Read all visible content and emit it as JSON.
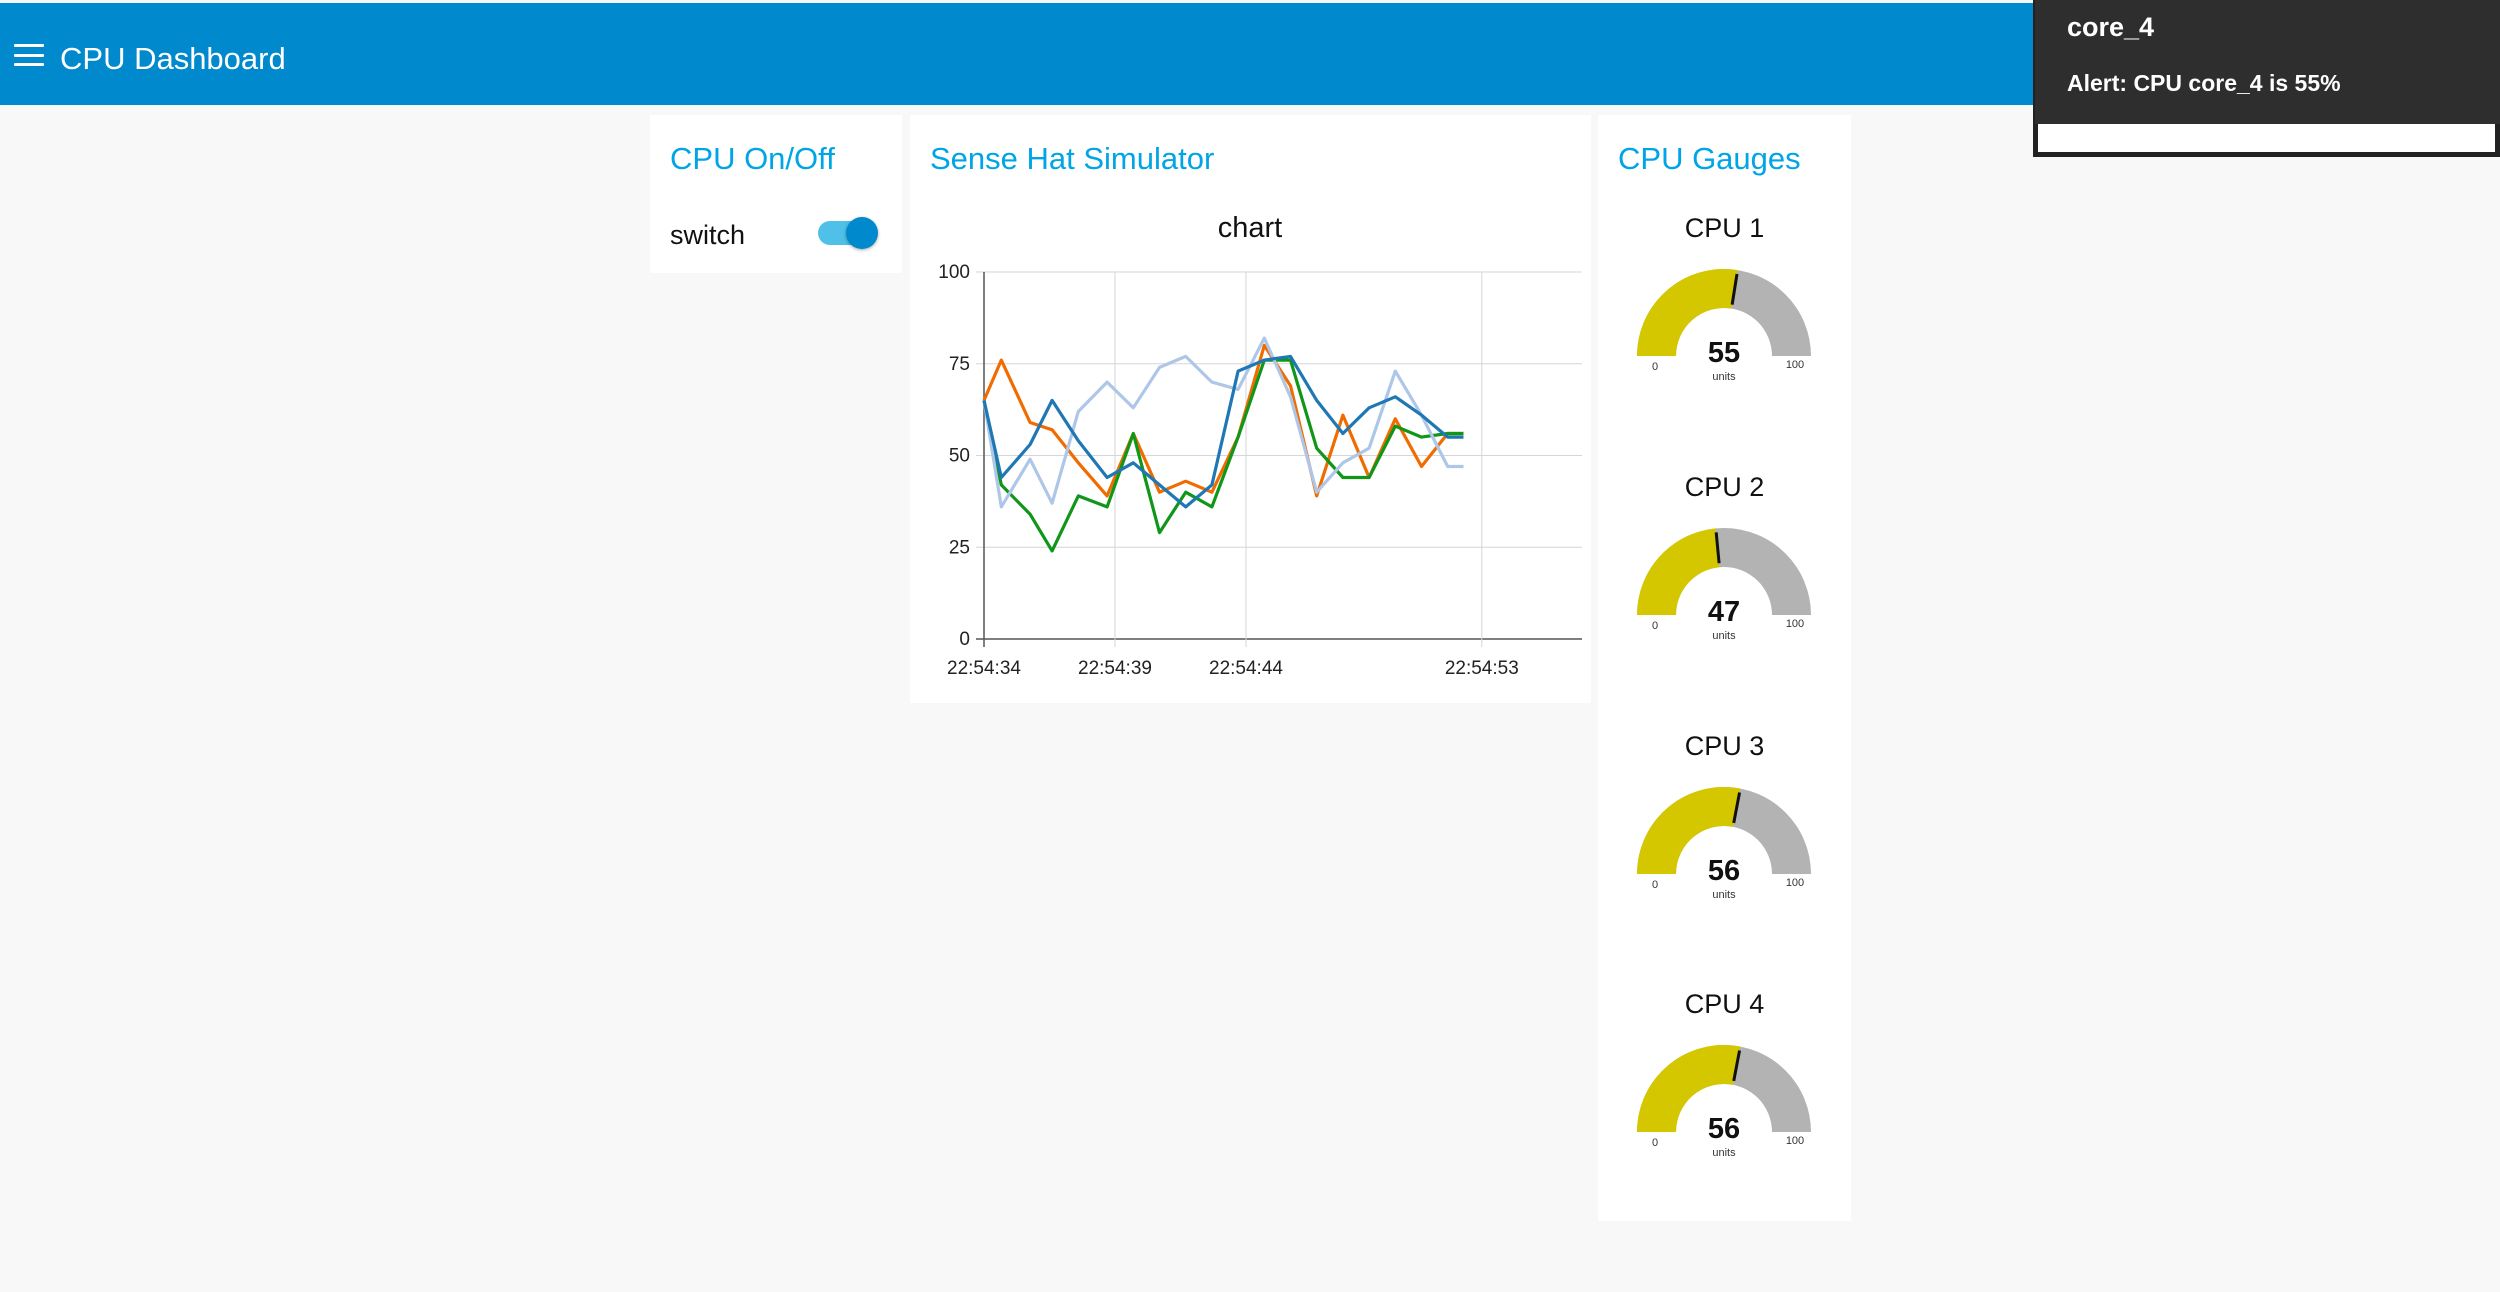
{
  "header": {
    "title": "CPU Dashboard",
    "menu_icon": "hamburger-menu-icon"
  },
  "switch_card": {
    "title": "CPU On/Off",
    "switch_label": "switch",
    "switch_state": "on"
  },
  "chart_card": {
    "title": "Sense Hat Simulator"
  },
  "chart_data": {
    "type": "line",
    "title": "chart",
    "xlabel": "",
    "ylabel": "",
    "ylim": [
      0,
      100
    ],
    "ytick_labels": [
      "0",
      "25",
      "50",
      "75",
      "100"
    ],
    "x_tick_labels": [
      "22:54:34",
      "22:54:39",
      "22:54:44",
      "22:54:53"
    ],
    "x_tick_seconds": [
      0,
      5,
      10,
      19
    ],
    "x_seconds": [
      0,
      0.66,
      1.76,
      2.6,
      3.6,
      4.7,
      5.7,
      6.7,
      7.7,
      8.7,
      9.7,
      10.7,
      11.7,
      12.7,
      13.7,
      14.7,
      15.7,
      16.7,
      17.7,
      18.3
    ],
    "grid": true,
    "legend": "none",
    "series": [
      {
        "color": "#f06c00",
        "values": [
          65,
          76,
          59,
          57,
          48,
          39,
          56,
          40,
          43,
          40,
          55,
          80,
          69,
          39,
          61,
          44,
          60,
          47,
          56,
          56
        ]
      },
      {
        "color": "#109618",
        "values": [
          65,
          42,
          34,
          24,
          39,
          36,
          56,
          29,
          40,
          36,
          55,
          76,
          76,
          52,
          44,
          44,
          58,
          55,
          56,
          56
        ]
      },
      {
        "color": "#aec7e8",
        "values": [
          65,
          36,
          49,
          37,
          62,
          70,
          63,
          74,
          77,
          70,
          68,
          82,
          66,
          40,
          48,
          52,
          73,
          61,
          47,
          47
        ]
      },
      {
        "color": "#1f77b4",
        "values": [
          65,
          44,
          53,
          65,
          54,
          44,
          48,
          42,
          36,
          42,
          73,
          76,
          77,
          65,
          56,
          63,
          66,
          61,
          55,
          55
        ]
      }
    ]
  },
  "gauges_card": {
    "title": "CPU Gauges",
    "gauges": [
      {
        "label": "CPU 1",
        "value": 55,
        "min": "0",
        "max": "100",
        "units": "units"
      },
      {
        "label": "CPU 2",
        "value": 47,
        "min": "0",
        "max": "100",
        "units": "units"
      },
      {
        "label": "CPU 3",
        "value": 56,
        "min": "0",
        "max": "100",
        "units": "units"
      },
      {
        "label": "CPU 4",
        "value": 56,
        "min": "0",
        "max": "100",
        "units": "units"
      }
    ],
    "fill_color": "#d4c700",
    "track_color": "#b3b3b3"
  },
  "toast": {
    "title": "core_4",
    "message": "Alert: CPU core_4 is 55%"
  }
}
